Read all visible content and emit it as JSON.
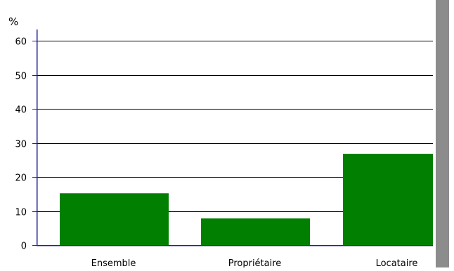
{
  "chart_data": {
    "type": "bar",
    "ylabel": "%",
    "ylim": [
      0,
      60
    ],
    "yticks": [
      "0",
      "10",
      "20",
      "30",
      "40",
      "50",
      "60"
    ],
    "categories": [
      "Ensemble",
      "Propriétaire",
      "Locataire"
    ],
    "values": [
      15.2,
      7.8,
      26.8
    ],
    "grid": true,
    "colors": {
      "bar": "#007f00",
      "axis": "#1f1f8f",
      "grid": "#000000",
      "scrollbar": "#8c8c8c"
    }
  }
}
